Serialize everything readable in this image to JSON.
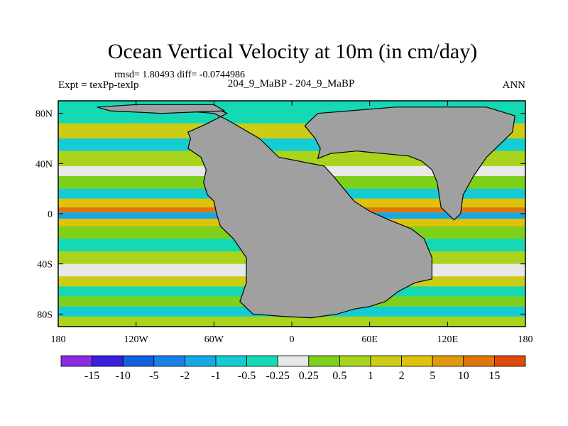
{
  "chart_data": {
    "type": "heatmap",
    "title": "Ocean Vertical Velocity at 10m (in cm/day)",
    "stats_line": "rmsd= 1.80493 diff= -0.0744986",
    "left_label": "Expt = texPp-texlp",
    "center_label": "204_9_MaBP - 204_9_MaBP",
    "right_label": "ANN",
    "x_range": [
      -180,
      180
    ],
    "y_range": [
      -90,
      90
    ],
    "x_ticks": [
      {
        "value": -180,
        "label": "180"
      },
      {
        "value": -120,
        "label": "120W"
      },
      {
        "value": -60,
        "label": "60W"
      },
      {
        "value": 0,
        "label": "0"
      },
      {
        "value": 60,
        "label": "60E"
      },
      {
        "value": 120,
        "label": "120E"
      },
      {
        "value": 180,
        "label": "180"
      }
    ],
    "y_ticks": [
      {
        "value": 80,
        "label": "80N"
      },
      {
        "value": 40,
        "label": "40N"
      },
      {
        "value": 0,
        "label": "0"
      },
      {
        "value": -40,
        "label": "40S"
      },
      {
        "value": -80,
        "label": "80S"
      }
    ],
    "colorbar": {
      "colors": [
        "#8a2be2",
        "#3a1ee0",
        "#1060e0",
        "#1a82e6",
        "#17a8e6",
        "#14ccd2",
        "#14d9b4",
        "#e8e8e8",
        "#7ed01a",
        "#a8d41c",
        "#cccc14",
        "#e0c20c",
        "#e09a0c",
        "#e0760c",
        "#e04a08"
      ],
      "labels": [
        "-15",
        "-10",
        "-5",
        "-2",
        "-1",
        "-0.5",
        "-0.25",
        "0.25",
        "0.5",
        "1",
        "2",
        "5",
        "10",
        "15"
      ]
    },
    "land_color": "#a0a0a0",
    "continents": [
      {
        "name": "americas",
        "points": [
          [
            -130,
            85
          ],
          [
            -60,
            85
          ],
          [
            -50,
            80
          ],
          [
            -65,
            72
          ],
          [
            -80,
            65
          ],
          [
            -78,
            60
          ],
          [
            -80,
            52
          ],
          [
            -70,
            45
          ],
          [
            -66,
            35
          ],
          [
            -68,
            25
          ],
          [
            -65,
            15
          ],
          [
            -60,
            10
          ],
          [
            -58,
            0
          ],
          [
            -55,
            -10
          ],
          [
            -45,
            -20
          ],
          [
            -35,
            -35
          ],
          [
            -35,
            -55
          ],
          [
            -40,
            -70
          ],
          [
            -30,
            -80
          ],
          [
            -5,
            -82
          ],
          [
            15,
            -83
          ],
          [
            35,
            -80
          ],
          [
            48,
            -76
          ],
          [
            60,
            -74
          ],
          [
            72,
            -70
          ],
          [
            82,
            -62
          ],
          [
            95,
            -55
          ],
          [
            108,
            -52
          ],
          [
            108,
            -35
          ],
          [
            102,
            -20
          ],
          [
            92,
            -12
          ],
          [
            75,
            -5
          ],
          [
            60,
            2
          ],
          [
            48,
            10
          ],
          [
            40,
            20
          ],
          [
            32,
            30
          ],
          [
            25,
            38
          ],
          [
            -10,
            45
          ],
          [
            -25,
            60
          ],
          [
            -50,
            75
          ],
          [
            -60,
            80
          ],
          [
            -95,
            83
          ]
        ]
      },
      {
        "name": "eurasia",
        "points": [
          [
            20,
            44
          ],
          [
            30,
            48
          ],
          [
            50,
            50
          ],
          [
            70,
            48
          ],
          [
            90,
            46
          ],
          [
            100,
            42
          ],
          [
            108,
            35
          ],
          [
            112,
            25
          ],
          [
            115,
            5
          ],
          [
            125,
            -5
          ],
          [
            130,
            0
          ],
          [
            132,
            15
          ],
          [
            140,
            30
          ],
          [
            150,
            45
          ],
          [
            160,
            55
          ],
          [
            170,
            65
          ],
          [
            172,
            78
          ],
          [
            150,
            85
          ],
          [
            80,
            85
          ],
          [
            20,
            80
          ],
          [
            10,
            70
          ],
          [
            18,
            60
          ],
          [
            22,
            52
          ]
        ]
      },
      {
        "name": "north-cap",
        "points": [
          [
            -150,
            85
          ],
          [
            -120,
            87
          ],
          [
            -60,
            87
          ],
          [
            -52,
            82
          ],
          [
            -100,
            80
          ],
          [
            -140,
            82
          ]
        ]
      }
    ]
  }
}
